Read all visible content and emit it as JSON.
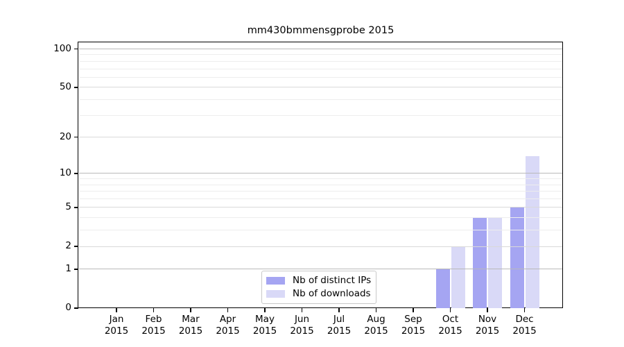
{
  "chart_data": {
    "type": "bar",
    "title": "mm430bmmensgprobe 2015",
    "year": "2015",
    "categories": [
      "Jan",
      "Feb",
      "Mar",
      "Apr",
      "May",
      "Jun",
      "Jul",
      "Aug",
      "Sep",
      "Oct",
      "Nov",
      "Dec"
    ],
    "series": [
      {
        "name": "Nb of distinct IPs",
        "color": "#a5a5f2",
        "values": [
          0,
          0,
          0,
          0,
          0,
          0,
          0,
          0,
          0,
          1,
          4,
          5
        ]
      },
      {
        "name": "Nb of downloads",
        "color": "#d9d9f7",
        "values": [
          0,
          0,
          0,
          0,
          0,
          0,
          0,
          0,
          0,
          2,
          4,
          14
        ]
      }
    ],
    "yscale": "log1p",
    "yticks": [
      0,
      1,
      2,
      5,
      10,
      20,
      50,
      100
    ],
    "ylim": [
      0,
      112.6
    ],
    "xlabel": "",
    "ylabel": "",
    "grid": true,
    "gridline_values": {
      "major": [
        1,
        10,
        100
      ],
      "mid": [
        2,
        5,
        20,
        50
      ],
      "minor": [
        3,
        4,
        6,
        7,
        8,
        9,
        30,
        40,
        60,
        70,
        80,
        90
      ]
    },
    "legend_position": "bottom-center",
    "colors": {
      "axis": "#000000",
      "grid_major": "#b9b9b9",
      "grid_mid": "#d9d9d9",
      "grid_minor": "#ededed",
      "legend_border": "#c8c8c8",
      "background": "#ffffff"
    }
  }
}
